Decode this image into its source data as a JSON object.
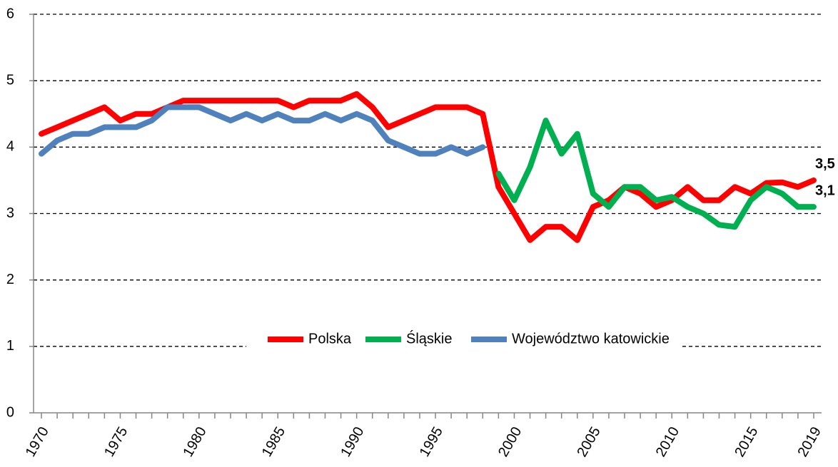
{
  "chart_data": {
    "type": "line",
    "x": [
      1970,
      1971,
      1972,
      1973,
      1974,
      1975,
      1976,
      1977,
      1978,
      1979,
      1980,
      1981,
      1982,
      1983,
      1984,
      1985,
      1986,
      1987,
      1988,
      1989,
      1990,
      1991,
      1992,
      1993,
      1994,
      1995,
      1996,
      1997,
      1998,
      1999,
      2000,
      2001,
      2002,
      2003,
      2004,
      2005,
      2006,
      2007,
      2008,
      2009,
      2010,
      2011,
      2012,
      2013,
      2014,
      2015,
      2016,
      2017,
      2018,
      2019
    ],
    "series": [
      {
        "name": "Polska",
        "color": "#ff0000",
        "values": [
          4.2,
          4.3,
          4.4,
          4.5,
          4.6,
          4.4,
          4.5,
          4.5,
          4.6,
          4.7,
          4.7,
          4.7,
          4.7,
          4.7,
          4.7,
          4.7,
          4.6,
          4.7,
          4.7,
          4.7,
          4.8,
          4.6,
          4.3,
          4.4,
          4.5,
          4.6,
          4.6,
          4.6,
          4.5,
          3.4,
          3.0,
          2.6,
          2.8,
          2.8,
          2.6,
          3.1,
          3.2,
          3.4,
          3.3,
          3.1,
          3.2,
          3.4,
          3.2,
          3.2,
          3.4,
          3.3,
          3.46,
          3.47,
          3.4,
          3.5
        ],
        "value_labels": [
          null,
          null,
          null,
          null,
          null,
          null,
          null,
          null,
          null,
          null,
          null,
          null,
          null,
          null,
          null,
          null,
          null,
          null,
          null,
          null,
          null,
          null,
          null,
          null,
          null,
          null,
          null,
          null,
          null,
          null,
          null,
          null,
          null,
          null,
          null,
          null,
          null,
          null,
          null,
          null,
          null,
          null,
          null,
          null,
          null,
          null,
          null,
          null,
          null,
          "3,5"
        ]
      },
      {
        "name": "Śląskie",
        "color": "#00b050",
        "values": [
          null,
          null,
          null,
          null,
          null,
          null,
          null,
          null,
          null,
          null,
          null,
          null,
          null,
          null,
          null,
          null,
          null,
          null,
          null,
          null,
          null,
          null,
          null,
          null,
          null,
          null,
          null,
          null,
          null,
          3.6,
          3.2,
          3.7,
          4.4,
          3.9,
          4.2,
          3.3,
          3.1,
          3.4,
          3.4,
          3.2,
          3.25,
          3.1,
          3.0,
          2.83,
          2.8,
          3.2,
          3.4,
          3.3,
          3.1,
          3.1
        ],
        "value_labels": [
          null,
          null,
          null,
          null,
          null,
          null,
          null,
          null,
          null,
          null,
          null,
          null,
          null,
          null,
          null,
          null,
          null,
          null,
          null,
          null,
          null,
          null,
          null,
          null,
          null,
          null,
          null,
          null,
          null,
          null,
          null,
          null,
          null,
          null,
          null,
          null,
          null,
          null,
          null,
          null,
          null,
          null,
          null,
          null,
          null,
          null,
          null,
          null,
          null,
          "3,1"
        ]
      },
      {
        "name": "Województwo katowickie",
        "color": "#4f81bd",
        "values": [
          3.9,
          4.1,
          4.2,
          4.2,
          4.3,
          4.3,
          4.3,
          4.4,
          4.6,
          4.6,
          4.6,
          4.5,
          4.4,
          4.5,
          4.4,
          4.5,
          4.4,
          4.4,
          4.5,
          4.4,
          4.5,
          4.4,
          4.1,
          4.0,
          3.9,
          3.9,
          4.0,
          3.9,
          4.0,
          null,
          null,
          null,
          null,
          null,
          null,
          null,
          null,
          null,
          null,
          null,
          null,
          null,
          null,
          null,
          null,
          null,
          null,
          null,
          null,
          null
        ]
      }
    ],
    "xlim": [
      1969.5,
      2019.5
    ],
    "xticks": [
      1970,
      1975,
      1980,
      1985,
      1990,
      1995,
      2000,
      2005,
      2010,
      2015,
      2019
    ],
    "ylim": [
      0,
      6
    ],
    "yticks": [
      0,
      1,
      2,
      3,
      4,
      5,
      6
    ],
    "grid": true,
    "legend": "center"
  }
}
